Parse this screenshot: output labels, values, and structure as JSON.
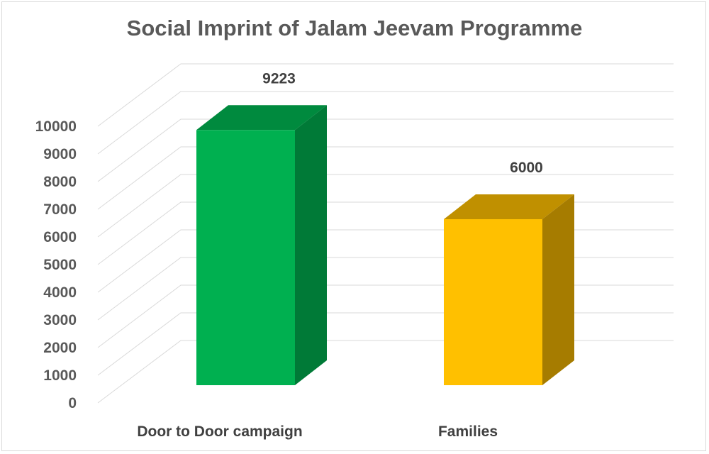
{
  "chart_data": {
    "type": "bar",
    "style": "3d-column",
    "title": "Social Imprint of Jalam Jeevam Programme",
    "categories": [
      "Door to Door campaign",
      "Families"
    ],
    "values": [
      9223,
      6000
    ],
    "data_labels": [
      "9223",
      "6000"
    ],
    "colors": {
      "front": [
        "#00b050",
        "#ffc000"
      ],
      "side": [
        "#007a37",
        "#a67c00"
      ],
      "top": [
        "#008a3e",
        "#c09000"
      ]
    },
    "ylim": [
      0,
      10000
    ],
    "yticks": [
      0,
      1000,
      2000,
      3000,
      4000,
      5000,
      6000,
      7000,
      8000,
      9000,
      10000
    ],
    "ytick_labels": [
      "0",
      "1000",
      "2000",
      "3000",
      "4000",
      "5000",
      "6000",
      "7000",
      "8000",
      "9000",
      "10000"
    ],
    "xlabel": "",
    "ylabel": "",
    "grid": true,
    "legend": "none"
  }
}
